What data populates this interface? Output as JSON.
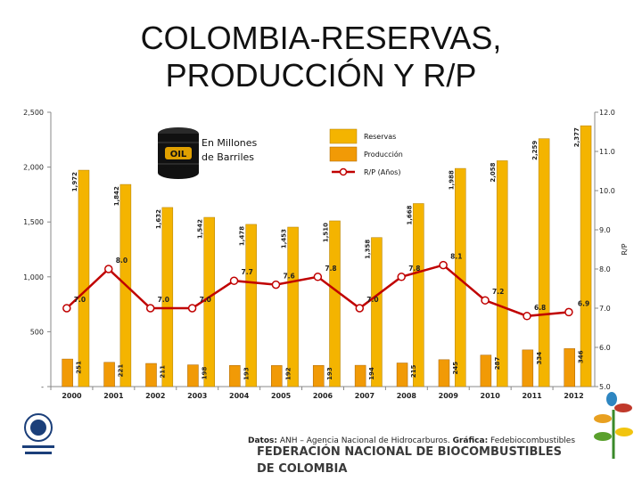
{
  "title_line1": "COLOMBIA-RESERVAS,",
  "title_line2": "PRODUCCIÓN Y R/P",
  "colors": {
    "reservas": "#f4b400",
    "produccion": "#f19a06",
    "rp_line": "#c00000"
  },
  "chart_data": {
    "type": "bar",
    "categories": [
      "2000",
      "2001",
      "2002",
      "2003",
      "2004",
      "2005",
      "2006",
      "2007",
      "2008",
      "2009",
      "2010",
      "2011",
      "2012"
    ],
    "series": [
      {
        "name": "Reservas",
        "values": [
          1972,
          1842,
          1632,
          1542,
          1478,
          1453,
          1510,
          1358,
          1668,
          1988,
          2058,
          2259,
          2377
        ],
        "labels": [
          "1,972",
          "1,842",
          "1,632",
          "1,542",
          "1,478",
          "1,453",
          "1,510",
          "1,358",
          "1,668",
          "1,988",
          "2,058",
          "2,259",
          "2,377"
        ]
      },
      {
        "name": "Producción",
        "values": [
          251,
          221,
          211,
          198,
          193,
          192,
          193,
          194,
          215,
          245,
          287,
          334,
          346
        ],
        "labels": [
          "251",
          "221",
          "211",
          "198",
          "193",
          "192",
          "193",
          "194",
          "215",
          "245",
          "287",
          "334",
          "346"
        ]
      },
      {
        "name": "R/P (Años)",
        "type": "line",
        "axis": "right",
        "values": [
          7.0,
          8.0,
          7.0,
          7.0,
          7.7,
          7.6,
          7.8,
          7.0,
          7.8,
          8.1,
          7.2,
          6.8,
          6.9
        ],
        "labels": [
          "7.0",
          "8.0",
          "7.0",
          "7.0",
          "7.7",
          "7.6",
          "7.8",
          "7.0",
          "7.8",
          "8.1",
          "7.2",
          "6.8",
          "6.9"
        ]
      }
    ],
    "ylim": [
      0,
      2500
    ],
    "yticks": [
      0,
      500,
      1000,
      1500,
      2000,
      2500
    ],
    "ytick_labels": [
      "-",
      "500",
      "1,000",
      "1,500",
      "2,000",
      "2,500"
    ],
    "y2lim": [
      5.0,
      12.0
    ],
    "y2ticks": [
      5.0,
      6.0,
      7.0,
      8.0,
      9.0,
      10.0,
      11.0,
      12.0
    ],
    "y2tick_labels": [
      "5.0",
      "6.0",
      "7.0",
      "8.0",
      "9.0",
      "10.0",
      "11.0",
      "12.0"
    ],
    "y2label": "R/P",
    "legend_position": "top-center",
    "annotation": "En Millones de Barriles",
    "annotation_line1": "En Millones",
    "annotation_line2": "de Barriles",
    "oil_barrel_text": "OIL"
  },
  "source": {
    "label1": "Datos:",
    "text1": "ANH – Agencia Nacional de Hidrocarburos.",
    "label2": "Gráfica:",
    "text2": "Fedebiocombustibles"
  },
  "footer": {
    "line1": "FEDERACIÓN NACIONAL DE BIOCOMBUSTIBLES",
    "line2": "DE COLOMBIA"
  }
}
